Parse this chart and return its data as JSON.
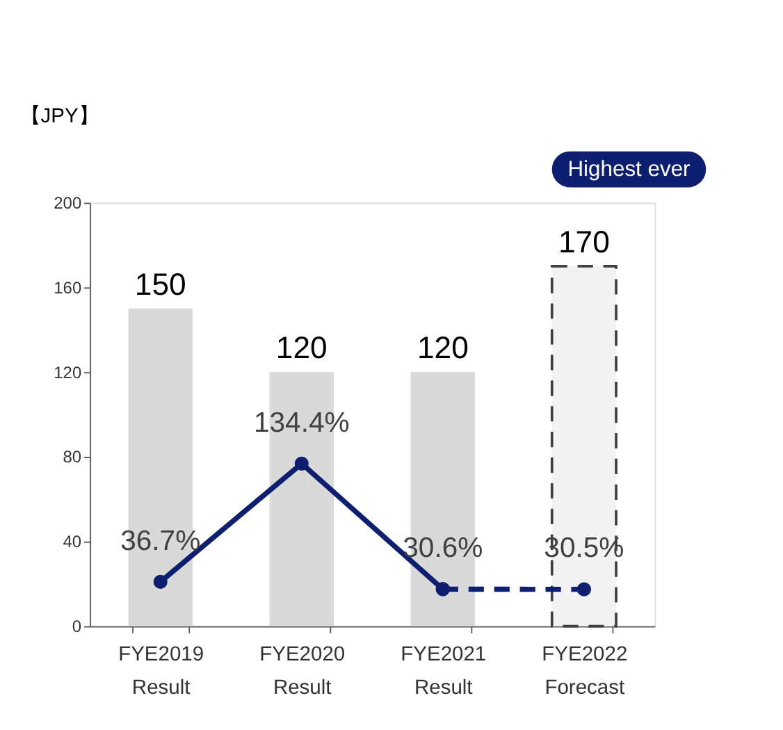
{
  "chart_data": {
    "type": "bar",
    "ylabel": "【JPY】",
    "categories": [
      "FYE2019\nResult",
      "FYE2020\nResult",
      "FYE2021\nResult",
      "FYE2022\nForecast"
    ],
    "series": [
      {
        "color": "#d9d9d9",
        "values": [
          150,
          120,
          120,
          null
        ]
      },
      {
        "color": "#f2f2f2",
        "line_style": "dashed",
        "values": [
          null,
          null,
          null,
          170
        ]
      },
      {
        "type": "line",
        "axis": "y2",
        "color": "#0d1f6e",
        "line_style": "solid",
        "marker": "circle",
        "values": [
          36.7,
          134.4,
          30.6,
          null
        ],
        "value_labels": [
          "36.7%",
          "134.4%",
          "30.6%",
          null
        ]
      },
      {
        "type": "line",
        "axis": "y2",
        "color": "#0d1f6e",
        "line_style": "dashed",
        "marker": "circle",
        "values": [
          null,
          null,
          30.6,
          30.5
        ],
        "value_labels": [
          null,
          null,
          null,
          "30.5%"
        ]
      }
    ],
    "data_labels": true,
    "ylim": [
      0,
      200
    ],
    "yticks": [
      0,
      40,
      80,
      120,
      160,
      200
    ],
    "y2lim": [
      0,
      350
    ],
    "grid": false,
    "annotations": [
      "Highest ever"
    ]
  }
}
